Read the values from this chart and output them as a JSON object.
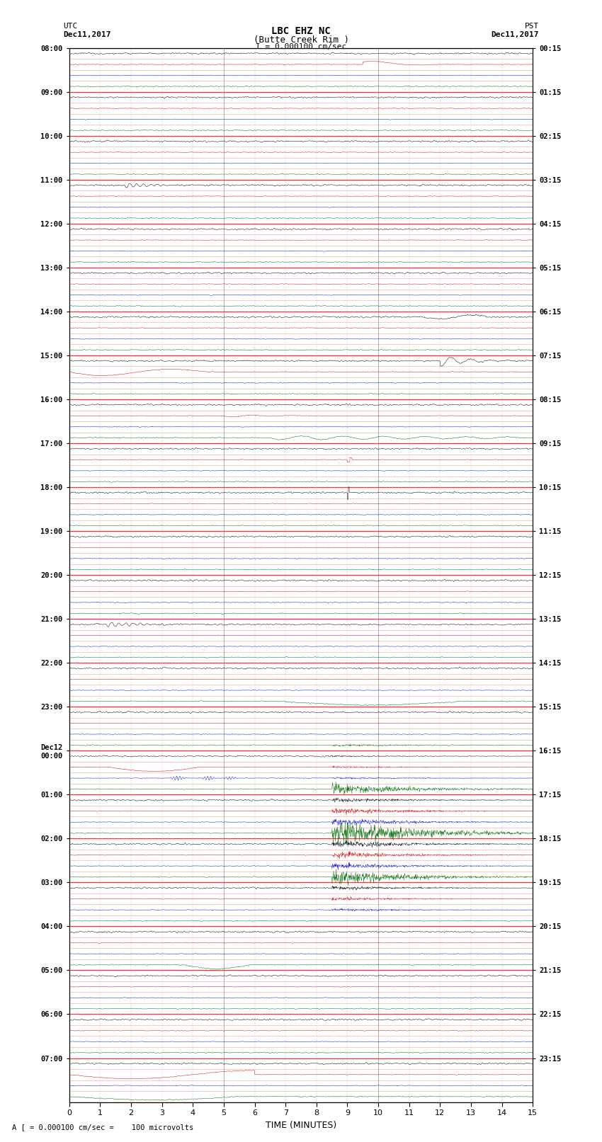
{
  "title_line1": "LBC EHZ NC",
  "title_line2": "(Butte Creek Rim )",
  "scale_text": "I = 0.000100 cm/sec",
  "footer_text": "A [ = 0.000100 cm/sec =    100 microvolts",
  "xlabel": "TIME (MINUTES)",
  "left_label_top": "UTC",
  "left_label_date": "Dec11,2017",
  "right_label_top": "PST",
  "right_label_date": "Dec11,2017",
  "utc_hour_labels": [
    "08:00",
    "09:00",
    "10:00",
    "11:00",
    "12:00",
    "13:00",
    "14:00",
    "15:00",
    "16:00",
    "17:00",
    "18:00",
    "19:00",
    "20:00",
    "21:00",
    "22:00",
    "23:00",
    "Dec12\n00:00",
    "01:00",
    "02:00",
    "03:00",
    "04:00",
    "05:00",
    "06:00",
    "07:00"
  ],
  "pst_hour_labels": [
    "00:15",
    "01:15",
    "02:15",
    "03:15",
    "04:15",
    "05:15",
    "06:15",
    "07:15",
    "08:15",
    "09:15",
    "10:15",
    "11:15",
    "12:15",
    "13:15",
    "14:15",
    "15:15",
    "16:15",
    "17:15",
    "18:15",
    "19:15",
    "20:15",
    "21:15",
    "22:15",
    "23:15"
  ],
  "n_hours": 24,
  "traces_per_hour": 4,
  "n_minutes": 15,
  "bg_color": "#ffffff",
  "trace_colors": [
    "#000000",
    "#cc0000",
    "#0000cc",
    "#006600"
  ],
  "grid_color_major": "#ff0000",
  "grid_color_minor": "#ff6666",
  "vgrid_color": "#888888",
  "seed": 12345
}
